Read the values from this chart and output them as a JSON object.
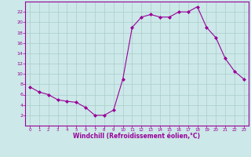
{
  "x": [
    0,
    1,
    2,
    3,
    4,
    5,
    6,
    7,
    8,
    9,
    10,
    11,
    12,
    13,
    14,
    15,
    16,
    17,
    18,
    19,
    20,
    21,
    22,
    23
  ],
  "y": [
    7.5,
    6.5,
    6.0,
    5.0,
    4.7,
    4.5,
    3.5,
    2.0,
    2.0,
    3.0,
    9.0,
    19.0,
    21.0,
    21.5,
    21.0,
    21.0,
    22.0,
    22.0,
    23.0,
    19.0,
    17.0,
    13.0,
    10.5,
    9.0
  ],
  "line_color": "#990099",
  "marker": "D",
  "marker_size": 2,
  "bg_color": "#cce8e8",
  "xlabel": "Windchill (Refroidissement éolien,°C)",
  "xlabel_color": "#990099",
  "tick_color": "#990099",
  "ylim": [
    0,
    24
  ],
  "xlim": [
    -0.5,
    23.5
  ],
  "yticks": [
    2,
    4,
    6,
    8,
    10,
    12,
    14,
    16,
    18,
    20,
    22
  ],
  "xticks": [
    0,
    1,
    2,
    3,
    4,
    5,
    6,
    7,
    8,
    9,
    10,
    11,
    12,
    13,
    14,
    15,
    16,
    17,
    18,
    19,
    20,
    21,
    22,
    23
  ],
  "axis_color": "#990099",
  "grid_color": "#aacccc"
}
